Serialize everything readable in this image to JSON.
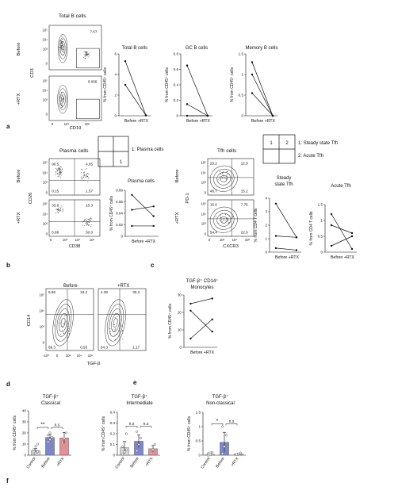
{
  "panel_letters": {
    "a": "a",
    "b": "b",
    "c": "c",
    "d": "d",
    "e": "e",
    "f": "f"
  },
  "flow": {
    "a": {
      "title": "Total B cells",
      "before": "Before",
      "after": "+RTX",
      "ylabel": "CD3",
      "xlabel": "CD19",
      "gate_before": "7.67",
      "gate_after": "0.066",
      "ticks_y": [
        "10⁵",
        "10⁴",
        "10³",
        "0"
      ],
      "ticks_x": [
        "0",
        "10⁴",
        "10⁵"
      ]
    },
    "b": {
      "title": "Plasma cells",
      "before": "Before",
      "after": "+RTX",
      "ylabel": "CD20",
      "xlabel": "CD38",
      "before_q": [
        "90.5",
        "4.65",
        "0.15",
        "1.57"
      ],
      "after_q": [
        "33.8",
        "10.3",
        "5.88",
        "50.0"
      ],
      "ticks_y": [
        "10⁵",
        "10⁴",
        "10³",
        "0"
      ],
      "ticks_x": [
        "0",
        "10³",
        "10⁴",
        "10⁵"
      ]
    },
    "c": {
      "title": "Tfh cells",
      "before": "Before",
      "after": "+RTX",
      "ylabel": "PD-1",
      "xlabel": "CXCR3",
      "before_q": [
        "25.2",
        "12.9",
        "46.7",
        "15.2"
      ],
      "after_q": [
        "15.0",
        "7.75",
        "54.4",
        "22.9"
      ],
      "ticks_y": [
        "10⁵",
        "10⁴",
        "10³",
        "0"
      ],
      "ticks_x": [
        "0",
        "10³",
        "10⁴",
        "10⁵"
      ]
    },
    "d": {
      "before": "Before",
      "after": "+RTX",
      "ylabel": "CD14",
      "xlabel": "TGF-β",
      "before_q": [
        "5.66",
        "24.2",
        "69.3",
        "0.93"
      ],
      "after_q": [
        "4.29",
        "30.2",
        "64.3",
        "1.17"
      ],
      "ticks_y": [
        "10⁵",
        "10⁴",
        "10³",
        "0"
      ],
      "ticks_x": [
        "-10³",
        "0",
        "10³",
        "10⁴",
        "10⁵"
      ]
    }
  },
  "legends": {
    "b": {
      "q1": "1",
      "label": "1: Plasma cells"
    },
    "c": {
      "q1": "1",
      "q2": "2",
      "label1": "1: Steady state Tfh",
      "label2": "2: Acute Tfh"
    }
  },
  "chart_data": [
    {
      "type": "line",
      "panel": "a",
      "title": "Total B cells",
      "ylabel": "% from CD45⁺ cells",
      "categories": [
        "Before",
        "+RTX"
      ],
      "ylim": [
        0,
        6
      ],
      "yticks": [
        0,
        2,
        4,
        6
      ],
      "series": [
        {
          "values": [
            5.3,
            0.05
          ]
        },
        {
          "values": [
            3.0,
            0.03
          ]
        }
      ]
    },
    {
      "type": "line",
      "panel": "a",
      "title": "GC B cells",
      "ylabel": "% from CD45⁺ cells",
      "categories": [
        "Before",
        "+RTX"
      ],
      "ylim": [
        0,
        0.8
      ],
      "yticks": [
        0.0,
        0.2,
        0.4,
        0.6,
        0.8
      ],
      "series": [
        {
          "values": [
            0.65,
            0.0
          ]
        },
        {
          "values": [
            0.15,
            0.0
          ]
        },
        {
          "values": [
            0.0,
            0.0
          ]
        }
      ]
    },
    {
      "type": "line",
      "panel": "a",
      "title": "Memory B cells",
      "ylabel": "% from CD45⁺ cells",
      "categories": [
        "Before",
        "+RTX"
      ],
      "ylim": [
        0,
        1.5
      ],
      "yticks": [
        0.0,
        0.5,
        1.0,
        1.5
      ],
      "series": [
        {
          "values": [
            1.3,
            0.0
          ]
        },
        {
          "values": [
            1.0,
            0.0
          ]
        },
        {
          "values": [
            0.55,
            0.0
          ]
        }
      ]
    },
    {
      "type": "line",
      "panel": "b",
      "title": "Plasma cells",
      "ylabel": "% from CD45⁺ cells",
      "categories": [
        "Before",
        "+RTX"
      ],
      "ylim": [
        0,
        0.08
      ],
      "yticks": [
        0.0,
        0.02,
        0.04,
        0.06,
        0.08
      ],
      "series": [
        {
          "values": [
            0.072,
            0.035
          ]
        },
        {
          "values": [
            0.046,
            0.052
          ]
        },
        {
          "values": [
            0.018,
            0.018
          ]
        }
      ]
    },
    {
      "type": "line",
      "panel": "c",
      "title": "Steady state Tfh",
      "ylabel": "% from CD4 T cells",
      "categories": [
        "Before",
        "+RTX"
      ],
      "ylim": [
        0,
        4
      ],
      "yticks": [
        0,
        1,
        2,
        3,
        4
      ],
      "series": [
        {
          "values": [
            3.6,
            1.1
          ]
        },
        {
          "values": [
            1.2,
            1.1
          ]
        },
        {
          "values": [
            0.3,
            0.15
          ]
        }
      ]
    },
    {
      "type": "line",
      "panel": "c",
      "title": "Acute Tfh",
      "ylabel": "% from CD4 T cells",
      "categories": [
        "Before",
        "+RTX"
      ],
      "ylim": [
        0,
        1.5
      ],
      "yticks": [
        0.0,
        0.5,
        1.0,
        1.5
      ],
      "series": [
        {
          "values": [
            1.2,
            0.1
          ]
        },
        {
          "values": [
            0.85,
            0.6
          ]
        },
        {
          "values": [
            0.2,
            0.5
          ]
        }
      ]
    },
    {
      "type": "line",
      "panel": "e",
      "title": "TGF-β⁺ CD14⁺ Monocytes",
      "ylabel": "% from CD45⁺ cells",
      "categories": [
        "Before",
        "+RTX"
      ],
      "ylim": [
        0,
        30
      ],
      "yticks": [
        0,
        10,
        20,
        30
      ],
      "series": [
        {
          "values": [
            25,
            28
          ]
        },
        {
          "values": [
            21,
            9
          ]
        },
        {
          "values": [
            5,
            16
          ]
        }
      ]
    },
    {
      "type": "bar",
      "panel": "f",
      "title": "TGF-β⁺ Classical",
      "ylabel": "% from CD45⁺ cells",
      "categories": [
        "Control",
        "Before",
        "+RTX"
      ],
      "values": [
        4,
        16,
        15.5
      ],
      "errors": [
        2,
        2.5,
        5
      ],
      "ylim": [
        0,
        40
      ],
      "yticks": [
        0,
        10,
        20,
        30,
        40
      ],
      "colors": [
        "#d6d6d6",
        "#7f86c6",
        "#e28f96"
      ],
      "points": [
        [
          1,
          2,
          3,
          5,
          8,
          10
        ],
        [
          12,
          14,
          16,
          18,
          20
        ],
        [
          11,
          15,
          20
        ]
      ],
      "annotations": [
        {
          "text": "**",
          "from": 0,
          "to": 1,
          "level": 25
        },
        {
          "text": "n.s",
          "from": 1,
          "to": 2,
          "level": 25
        }
      ]
    },
    {
      "type": "bar",
      "panel": "f",
      "title": "TGF-β⁺ Intermediate",
      "ylabel": "% from CD45⁺ cells",
      "categories": [
        "Control",
        "Before",
        "+RTX"
      ],
      "values": [
        0.07,
        0.13,
        0.06
      ],
      "errors": [
        0.06,
        0.06,
        0.03
      ],
      "ylim": [
        0,
        0.4
      ],
      "yticks": [
        0.0,
        0.1,
        0.2,
        0.3,
        0.4
      ],
      "colors": [
        "#d6d6d6",
        "#7f86c6",
        "#e28f96"
      ],
      "points": [
        [
          0.01,
          0.03,
          0.05,
          0.08,
          0.12,
          0.2
        ],
        [
          0.04,
          0.1,
          0.16,
          0.22
        ],
        [
          0.02,
          0.05,
          0.1
        ]
      ],
      "annotations": [
        {
          "text": "n.s",
          "from": 0,
          "to": 1,
          "level": 0.27
        },
        {
          "text": "n.s",
          "from": 1,
          "to": 2,
          "level": 0.27
        }
      ]
    },
    {
      "type": "bar",
      "panel": "f",
      "title": "TGF-β⁺ Non-classical",
      "ylabel": "% from CD45⁺ cells",
      "categories": [
        "Control",
        "Before",
        "+RTX"
      ],
      "values": [
        0.03,
        0.45,
        0.04
      ],
      "errors": [
        0.02,
        0.35,
        0.02
      ],
      "ylim": [
        0,
        1.5
      ],
      "yticks": [
        0.0,
        0.5,
        1.0,
        1.5
      ],
      "colors": [
        "#d6d6d6",
        "#7f86c6",
        "#e28f96"
      ],
      "points": [
        [
          0.0,
          0.02,
          0.04,
          0.06,
          0.08,
          0.1
        ],
        [
          0.05,
          0.3,
          0.7,
          1.0
        ],
        [
          0.02,
          0.04,
          0.08
        ]
      ],
      "annotations": [
        {
          "text": "*",
          "from": 0,
          "to": 1,
          "level": 1.1
        },
        {
          "text": "n.s",
          "from": 1,
          "to": 2,
          "level": 1.1
        }
      ]
    }
  ]
}
